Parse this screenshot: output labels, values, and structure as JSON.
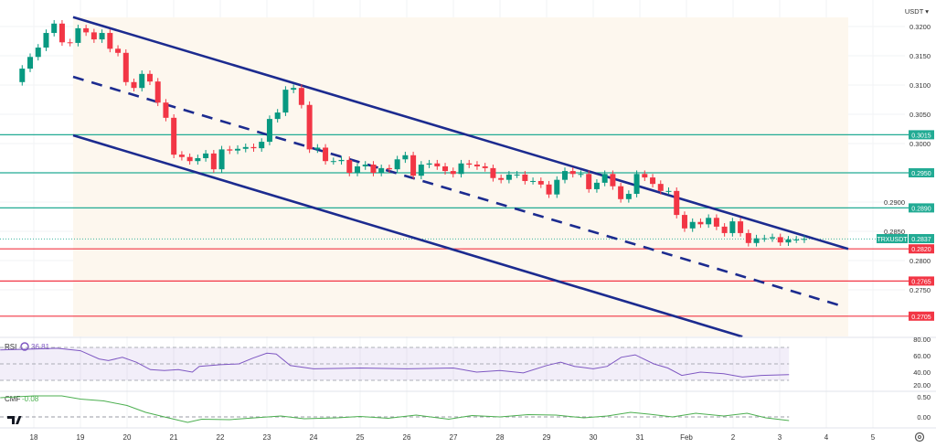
{
  "header": {
    "currency": "USDT ▾"
  },
  "chart_data": {
    "type": "candlestick",
    "symbol": "TRXUSDT",
    "last_price": "0.2837",
    "timeframe_note": "4h candles",
    "ylim": [
      0.2685,
      0.3215
    ],
    "price_ticks": [
      "0.3200",
      "0.3150",
      "0.3100",
      "0.3050",
      "0.3000",
      "0.2900",
      "0.2850",
      "0.2800",
      "0.2750"
    ],
    "x_ticks": [
      {
        "day": 0,
        "label": "18"
      },
      {
        "day": 1,
        "label": "19"
      },
      {
        "day": 2,
        "label": "20"
      },
      {
        "day": 3,
        "label": "21"
      },
      {
        "day": 4,
        "label": "22"
      },
      {
        "day": 5,
        "label": "23"
      },
      {
        "day": 6,
        "label": "24"
      },
      {
        "day": 7,
        "label": "25"
      },
      {
        "day": 8,
        "label": "26"
      },
      {
        "day": 9,
        "label": "27"
      },
      {
        "day": 10,
        "label": "28"
      },
      {
        "day": 11,
        "label": "29"
      },
      {
        "day": 12,
        "label": "30"
      },
      {
        "day": 13,
        "label": "31"
      },
      {
        "day": 14,
        "label": "Feb"
      },
      {
        "day": 15,
        "label": "2"
      },
      {
        "day": 16,
        "label": "3"
      },
      {
        "day": 17,
        "label": "4"
      },
      {
        "day": 18,
        "label": "5"
      }
    ],
    "first_day": -0.72,
    "candle_days": 0.1712,
    "first_open": 0.3105,
    "closes": [
      0.3128,
      0.3148,
      0.3164,
      0.3189,
      0.3205,
      0.3173,
      0.3172,
      0.3197,
      0.319,
      0.3178,
      0.3189,
      0.3162,
      0.3155,
      0.3105,
      0.3095,
      0.3119,
      0.3106,
      0.307,
      0.3044,
      0.2981,
      0.2977,
      0.297,
      0.2975,
      0.2983,
      0.2956,
      0.299,
      0.2988,
      0.2991,
      0.2994,
      0.2992,
      0.3003,
      0.3042,
      0.3053,
      0.3092,
      0.3095,
      0.3066,
      0.299,
      0.2993,
      0.297,
      0.297,
      0.2972,
      0.295,
      0.2961,
      0.2964,
      0.295,
      0.2958,
      0.2956,
      0.2973,
      0.298,
      0.2945,
      0.2964,
      0.2966,
      0.2961,
      0.2953,
      0.2948,
      0.2966,
      0.2964,
      0.2961,
      0.2958,
      0.2941,
      0.2938,
      0.2947,
      0.2947,
      0.2936,
      0.2936,
      0.293,
      0.2913,
      0.2938,
      0.2953,
      0.2948,
      0.2948,
      0.2922,
      0.2933,
      0.2948,
      0.2927,
      0.2905,
      0.2914,
      0.2948,
      0.2942,
      0.2931,
      0.2919,
      0.2919,
      0.2878,
      0.2855,
      0.2866,
      0.2862,
      0.2873,
      0.2858,
      0.2847,
      0.2867,
      0.2847,
      0.283,
      0.2838,
      0.2838,
      0.284,
      0.2831,
      0.2836,
      0.2836,
      0.2837
    ],
    "levels": [
      {
        "price": 0.3015,
        "label": "0.3015",
        "kind": "support-resistance",
        "color": "#22ab94"
      },
      {
        "price": 0.295,
        "label": "0.2950",
        "kind": "support-resistance",
        "color": "#22ab94"
      },
      {
        "price": 0.289,
        "label": "0.2890",
        "kind": "support-resistance",
        "color": "#22ab94"
      },
      {
        "price": 0.282,
        "label": "0.2820",
        "kind": "support",
        "color": "#f23645"
      },
      {
        "price": 0.2765,
        "label": "0.2765",
        "kind": "support",
        "color": "#f23645"
      },
      {
        "price": 0.2705,
        "label": "0.2705",
        "kind": "support",
        "color": "#f23645"
      }
    ],
    "channel": {
      "upper": [
        [
          0.843,
          0.3216
        ],
        [
          17.47,
          0.282
        ]
      ],
      "middle": [
        [
          0.843,
          0.3114
        ],
        [
          17.31,
          0.2723
        ]
      ],
      "lower": [
        [
          0.843,
          0.3014
        ],
        [
          15.2,
          0.267
        ]
      ]
    },
    "rsi": {
      "label": "RSI",
      "value": "36.81",
      "ylim": [
        20,
        80
      ],
      "ticks": [
        "80.00",
        "60.00",
        "40.00",
        "20.00"
      ],
      "band": [
        30,
        70
      ],
      "points": [
        [
          -0.72,
          67
        ],
        [
          0,
          68
        ],
        [
          0.5,
          69
        ],
        [
          1,
          66
        ],
        [
          1.4,
          56
        ],
        [
          1.6,
          54
        ],
        [
          1.9,
          58
        ],
        [
          2.2,
          52
        ],
        [
          2.5,
          43
        ],
        [
          2.8,
          42
        ],
        [
          3.1,
          43
        ],
        [
          3.4,
          40
        ],
        [
          3.55,
          47
        ],
        [
          4,
          49
        ],
        [
          4.4,
          50
        ],
        [
          4.7,
          57
        ],
        [
          5,
          63
        ],
        [
          5.2,
          62
        ],
        [
          5.5,
          48
        ],
        [
          6,
          44
        ],
        [
          7,
          45
        ],
        [
          8,
          44
        ],
        [
          9,
          45
        ],
        [
          9.5,
          40
        ],
        [
          10,
          42
        ],
        [
          10.5,
          39
        ],
        [
          11,
          48
        ],
        [
          11.3,
          52
        ],
        [
          11.6,
          47
        ],
        [
          12,
          44
        ],
        [
          12.3,
          47
        ],
        [
          12.6,
          58
        ],
        [
          12.9,
          61
        ],
        [
          13.3,
          50
        ],
        [
          13.6,
          45
        ],
        [
          13.9,
          36
        ],
        [
          14.3,
          40
        ],
        [
          14.8,
          38
        ],
        [
          15.2,
          34
        ],
        [
          15.6,
          36
        ],
        [
          16.2,
          37
        ]
      ]
    },
    "cmf": {
      "label": "CMF",
      "value": "-0.08",
      "ticks": [
        "0.50",
        "0.00"
      ],
      "points": [
        [
          -0.72,
          0.42
        ],
        [
          0,
          0.46
        ],
        [
          0.6,
          0.46
        ],
        [
          1,
          0.39
        ],
        [
          1.5,
          0.35
        ],
        [
          2,
          0.25
        ],
        [
          2.4,
          0.1
        ],
        [
          2.8,
          0.0
        ],
        [
          3.3,
          -0.12
        ],
        [
          3.6,
          -0.05
        ],
        [
          4.2,
          -0.06
        ],
        [
          4.6,
          -0.03
        ],
        [
          5.3,
          0.02
        ],
        [
          5.8,
          -0.04
        ],
        [
          6.5,
          -0.02
        ],
        [
          7,
          0.01
        ],
        [
          7.6,
          -0.03
        ],
        [
          8.2,
          0.04
        ],
        [
          8.9,
          -0.05
        ],
        [
          9.4,
          0.03
        ],
        [
          10,
          0.0
        ],
        [
          10.6,
          0.05
        ],
        [
          11.2,
          0.04
        ],
        [
          11.8,
          -0.02
        ],
        [
          12.3,
          0.02
        ],
        [
          12.8,
          0.1
        ],
        [
          13.2,
          0.06
        ],
        [
          13.7,
          0.0
        ],
        [
          14.2,
          0.08
        ],
        [
          14.8,
          0.02
        ],
        [
          15.3,
          0.08
        ],
        [
          15.7,
          -0.02
        ],
        [
          16.2,
          -0.08
        ]
      ]
    }
  }
}
